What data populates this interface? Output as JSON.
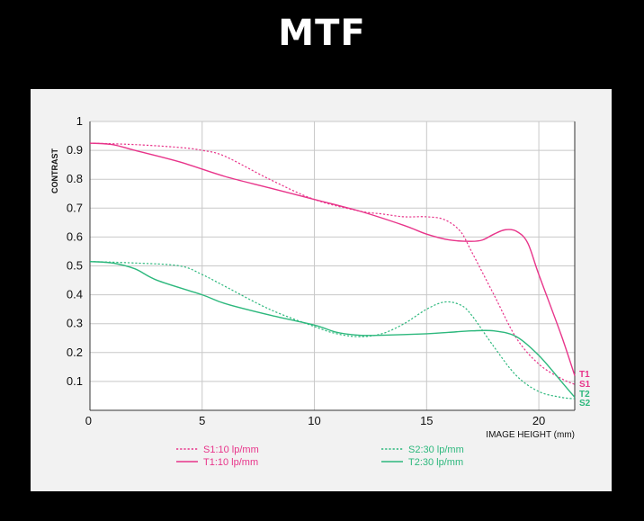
{
  "page": {
    "title": "MTF"
  },
  "chart_data": {
    "type": "line",
    "title": "MTF",
    "xlabel": "IMAGE HEIGHT  (mm)",
    "ylabel": "CONTRAST",
    "xlim": [
      0,
      21.6
    ],
    "ylim": [
      0,
      1
    ],
    "x_ticks": [
      "0",
      "5",
      "10",
      "15",
      "20"
    ],
    "y_ticks": [
      "1",
      "0.9",
      "0.8",
      "0.7",
      "0.6",
      "0.5",
      "0.4",
      "0.3",
      "0.2",
      "0.1"
    ],
    "grid": true,
    "legend_placement": "bottom",
    "colors": {
      "pink": "#e8348a",
      "green": "#2db87d"
    },
    "series": [
      {
        "name": "S1:10 lp/mm",
        "end_label": "S1",
        "color": "#e8348a",
        "style": "dotted",
        "x": [
          0,
          2,
          4,
          5,
          6,
          8,
          10,
          12,
          13,
          14,
          15,
          15.8,
          16.5,
          17,
          18,
          19,
          20,
          21,
          21.6
        ],
        "y": [
          0.925,
          0.92,
          0.91,
          0.9,
          0.88,
          0.8,
          0.73,
          0.69,
          0.68,
          0.67,
          0.67,
          0.66,
          0.62,
          0.55,
          0.4,
          0.25,
          0.16,
          0.11,
          0.09
        ]
      },
      {
        "name": "T1:10 lp/mm",
        "end_label": "T1",
        "color": "#e8348a",
        "style": "solid",
        "x": [
          0,
          1,
          2,
          4,
          6,
          8,
          10,
          12,
          14,
          15,
          16,
          17,
          17.5,
          18,
          18.5,
          19,
          19.5,
          20,
          21,
          21.6
        ],
        "y": [
          0.925,
          0.92,
          0.9,
          0.86,
          0.81,
          0.77,
          0.73,
          0.69,
          0.64,
          0.61,
          0.59,
          0.585,
          0.59,
          0.61,
          0.625,
          0.62,
          0.58,
          0.47,
          0.26,
          0.12
        ]
      },
      {
        "name": "S2:30 lp/mm",
        "end_label": "S2",
        "color": "#2db87d",
        "style": "dotted",
        "x": [
          0,
          2,
          4,
          5,
          6,
          8,
          10,
          11,
          12,
          13,
          14,
          15,
          15.8,
          16.5,
          17,
          18,
          19,
          20,
          21,
          21.6
        ],
        "y": [
          0.515,
          0.51,
          0.5,
          0.47,
          0.43,
          0.35,
          0.29,
          0.265,
          0.255,
          0.265,
          0.3,
          0.35,
          0.375,
          0.365,
          0.33,
          0.22,
          0.12,
          0.065,
          0.045,
          0.04
        ]
      },
      {
        "name": "T2:30 lp/mm",
        "end_label": "T2",
        "color": "#2db87d",
        "style": "solid",
        "x": [
          0,
          1,
          2,
          3,
          5,
          6,
          8,
          10,
          11,
          12,
          13,
          15,
          16,
          17,
          18,
          19,
          20,
          21,
          21.6
        ],
        "y": [
          0.515,
          0.51,
          0.49,
          0.45,
          0.4,
          0.37,
          0.33,
          0.295,
          0.27,
          0.26,
          0.26,
          0.265,
          0.27,
          0.275,
          0.275,
          0.255,
          0.19,
          0.1,
          0.045
        ]
      }
    ]
  }
}
